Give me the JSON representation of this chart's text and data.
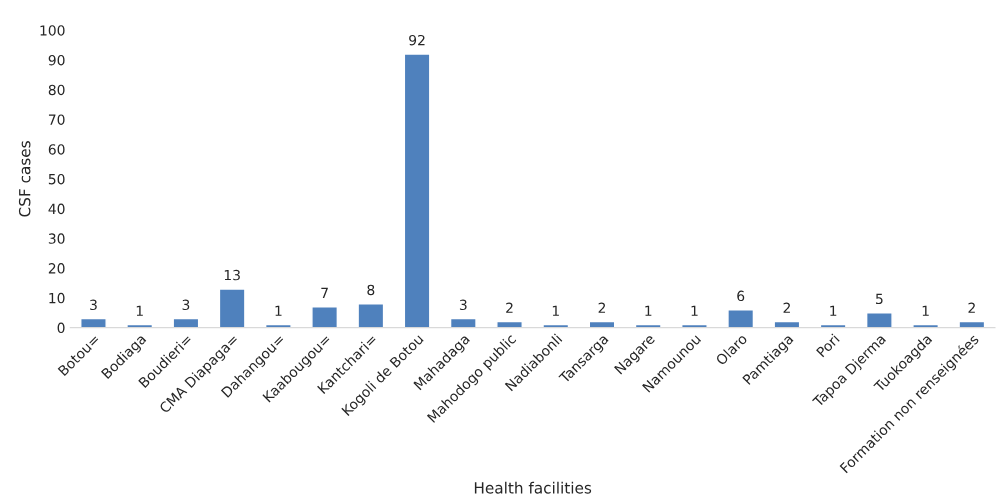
{
  "chart_data": {
    "type": "bar",
    "xlabel": "Health facilities",
    "ylabel": "CSF cases",
    "categories": [
      "Botou=",
      "Bodiaga",
      "Boudieri=",
      "CMA Diapaga=",
      "Dahangou=",
      "Kaabougou=",
      "Kantchari=",
      "Kogoli de Botou",
      "Mahadaga",
      "Mahodogo public",
      "Nadiabonli",
      "Tansarga",
      "Nagare",
      "Namounou",
      "Olaro",
      "Pamtiaga",
      "Pori",
      "Tapoa Djerma",
      "Tuokoagda",
      "Formation non renseignées"
    ],
    "values": [
      3,
      1,
      3,
      13,
      1,
      7,
      8,
      92,
      3,
      2,
      1,
      2,
      1,
      1,
      6,
      2,
      1,
      5,
      1,
      2
    ],
    "color": "#4f81bd",
    "ylim": [
      0,
      100
    ],
    "yticks": [
      0,
      10,
      20,
      30,
      40,
      50,
      60,
      70,
      80,
      90,
      100
    ],
    "data_labels": true,
    "grid": false,
    "legend": false
  }
}
